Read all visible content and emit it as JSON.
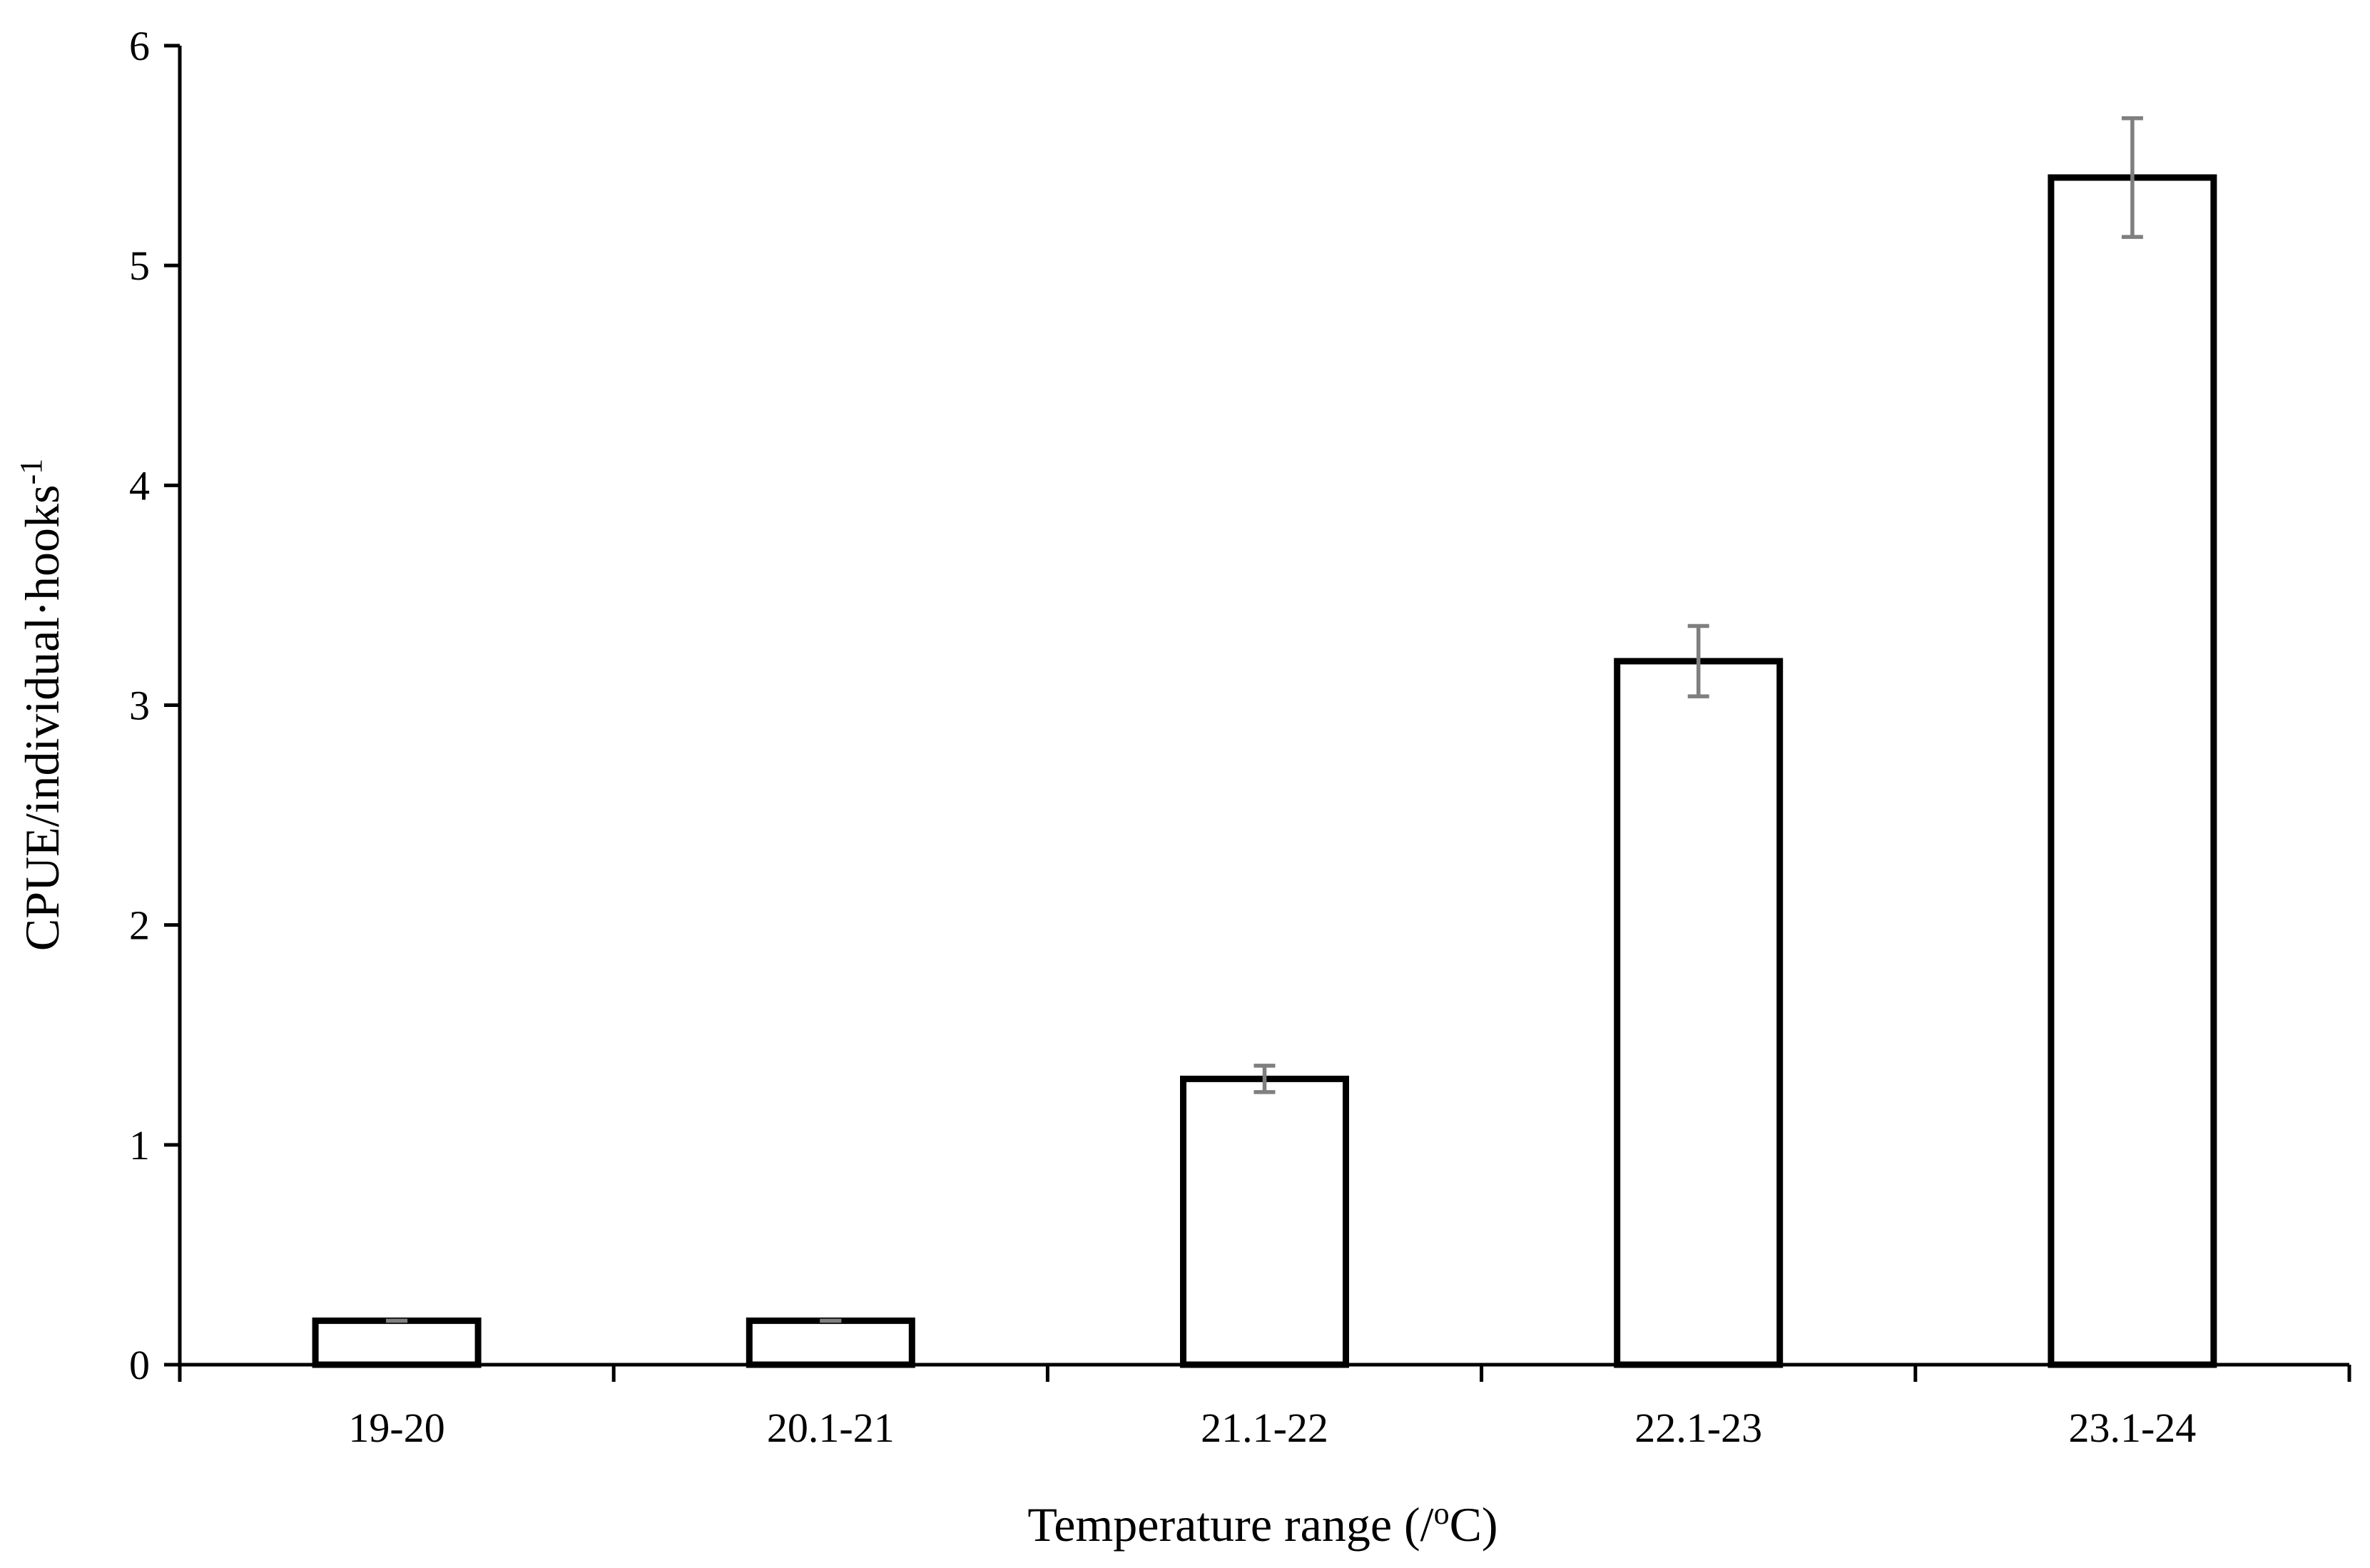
{
  "chart_data": {
    "type": "bar",
    "categories": [
      "19-20",
      "20.1-21",
      "21.1-22",
      "22.1-23",
      "23.1-24"
    ],
    "values": [
      0.2,
      0.2,
      1.3,
      3.2,
      5.4
    ],
    "errors": [
      0.0,
      0.0,
      0.06,
      0.16,
      0.27
    ],
    "xlabel": {
      "main": "Temperature range (/",
      "sup": "o",
      "tail": "C)"
    },
    "ylabel": {
      "main": "CPUE/individual·hooks",
      "sup": "-1"
    },
    "ylim": [
      0,
      6
    ],
    "yticks": [
      0,
      1,
      2,
      3,
      4,
      5,
      6
    ],
    "grid": false,
    "legend": "none",
    "colors": {
      "bar_fill": "#ffffff",
      "bar_stroke": "#000000",
      "error_bar": "#7f7f7f"
    }
  }
}
